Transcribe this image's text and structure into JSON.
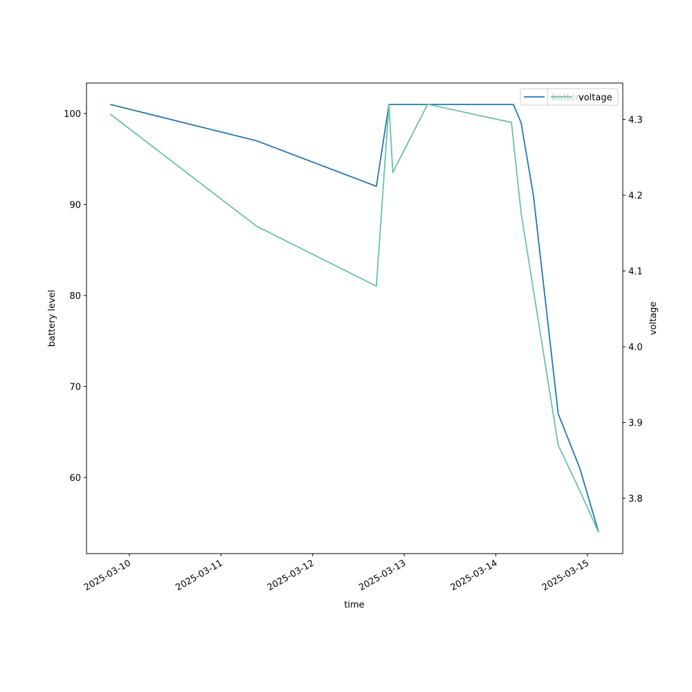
{
  "chart_data": {
    "type": "line",
    "xlabel": "time",
    "ylabel": "battery level",
    "y2label": "voltage",
    "xlim": [
      "2025-03-09T12:46",
      "2025-03-15T09:15"
    ],
    "xticks": [
      "2025-03-10",
      "2025-03-11",
      "2025-03-12",
      "2025-03-13",
      "2025-03-14",
      "2025-03-15"
    ],
    "ylim": [
      51.63,
      103.35
    ],
    "yticks": [
      60,
      70,
      80,
      90,
      100
    ],
    "y2lim": [
      3.727,
      4.348
    ],
    "y2ticks": [
      3.8,
      3.9,
      {
        "value": 4,
        "label": "4.0"
      },
      4.1,
      4.2,
      4.3
    ],
    "grid": false,
    "legend": "upper right",
    "series": [
      {
        "name": "battery",
        "color": "#1f77b4",
        "axis": "y",
        "x": [
          "2025-03-09T19:00",
          "2025-03-11T09:20",
          "2025-03-12T16:42",
          "2025-03-12T20:00",
          "2025-03-14T04:36",
          "2025-03-14T06:36",
          "2025-03-14T09:50",
          "2025-03-14T16:20",
          "2025-03-14T22:00",
          "2025-03-15T02:54"
        ],
        "values": [
          101,
          97,
          92,
          101,
          101,
          99,
          91,
          67,
          61,
          54
        ]
      },
      {
        "name": "voltage",
        "color": "#66c2a5",
        "axis": "y2",
        "x": [
          "2025-03-09T19:00",
          "2025-03-11T09:20",
          "2025-03-12T16:42",
          "2025-03-12T20:00",
          "2025-03-12T21:00",
          "2025-03-13T06:07",
          "2025-03-14T04:05",
          "2025-03-14T06:36",
          "2025-03-14T16:20",
          "2025-03-14T22:00",
          "2025-03-15T02:54"
        ],
        "values": [
          4.307,
          4.159,
          4.08,
          4.32,
          4.23,
          4.32,
          4.296,
          4.177,
          3.87,
          3.81,
          3.755
        ]
      }
    ]
  }
}
